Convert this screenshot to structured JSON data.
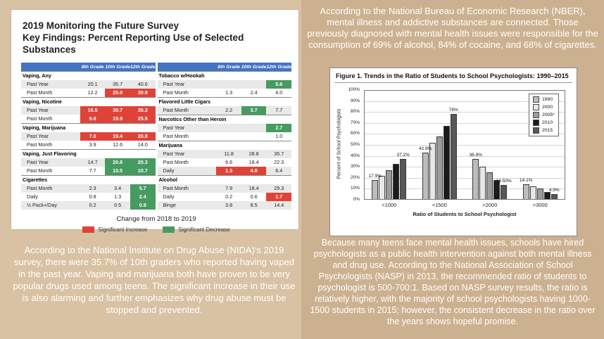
{
  "colors": {
    "background": "#d9c2a3",
    "background_right": "#ccb190",
    "table_header_blue": "#4472c4",
    "significant_increase_red": "#df4338",
    "significant_decrease_green": "#469b60",
    "paragraph_text": "#ffffff"
  },
  "survey": {
    "title_line1": "2019 Monitoring the Future Survey",
    "title_line2": "Key Findings: Percent Reporting Use of Selected Substances",
    "grade_headers": [
      "8th Grade",
      "10th Grade",
      "12th Grade"
    ],
    "change_caption": "Change from 2018 to 2019",
    "legend": [
      {
        "label": "Significant Increase",
        "type": "inc"
      },
      {
        "label": "Significant Decrease",
        "type": "dec"
      }
    ],
    "table_left": [
      {
        "type": "section",
        "label": "Vaping, Any"
      },
      {
        "type": "data",
        "label": "Past Year",
        "values": [
          "20.1",
          "35.7",
          "40.6"
        ],
        "marks": [
          "",
          "",
          ""
        ]
      },
      {
        "type": "data",
        "label": "Past Month",
        "values": [
          "12.2",
          "25.0",
          "30.9"
        ],
        "marks": [
          "",
          "inc",
          "inc"
        ]
      },
      {
        "type": "section",
        "label": "Vaping, Nicotine"
      },
      {
        "type": "data",
        "label": "Past Year",
        "values": [
          "16.5",
          "30.7",
          "35.3"
        ],
        "marks": [
          "inc",
          "inc",
          "inc"
        ]
      },
      {
        "type": "data",
        "label": "Past Month",
        "values": [
          "9.6",
          "19.9",
          "25.5"
        ],
        "marks": [
          "inc",
          "inc",
          "inc"
        ]
      },
      {
        "type": "section",
        "label": "Vaping, Marijuana"
      },
      {
        "type": "data",
        "label": "Past Year",
        "values": [
          "7.0",
          "19.4",
          "20.8"
        ],
        "marks": [
          "inc",
          "inc",
          "inc"
        ]
      },
      {
        "type": "data",
        "label": "Past Month",
        "values": [
          "3.9",
          "12.6",
          "14.0"
        ],
        "marks": [
          "",
          "",
          ""
        ]
      },
      {
        "type": "section",
        "label": "Vaping, Just Flavoring"
      },
      {
        "type": "data",
        "label": "Past Year",
        "values": [
          "14.7",
          "20.8",
          "20.3"
        ],
        "marks": [
          "",
          "dec",
          "dec"
        ]
      },
      {
        "type": "data",
        "label": "Past Month",
        "values": [
          "7.7",
          "10.5",
          "10.7"
        ],
        "marks": [
          "",
          "dec",
          "dec"
        ]
      },
      {
        "type": "section",
        "label": "Cigarettes"
      },
      {
        "type": "data",
        "label": "Past Month",
        "values": [
          "2.3",
          "3.4",
          "5.7"
        ],
        "marks": [
          "",
          "",
          "dec"
        ]
      },
      {
        "type": "data",
        "label": "Daily",
        "values": [
          "0.8",
          "1.3",
          "2.4"
        ],
        "marks": [
          "",
          "",
          "dec"
        ]
      },
      {
        "type": "data",
        "label": "½ Pack+/Day",
        "values": [
          "0.2",
          "0.5",
          "0.9"
        ],
        "marks": [
          "",
          "",
          "dec"
        ]
      }
    ],
    "table_right": [
      {
        "type": "section",
        "label": "Tobacco w/Hookah"
      },
      {
        "type": "data",
        "label": "Past Year",
        "values": [
          "",
          "",
          "5.6"
        ],
        "marks": [
          "",
          "",
          "dec"
        ]
      },
      {
        "type": "data",
        "label": "Past Month",
        "values": [
          "1.3",
          "2.4",
          "4.0"
        ],
        "marks": [
          "",
          "",
          ""
        ]
      },
      {
        "type": "section",
        "label": "Flavored Little Cigars"
      },
      {
        "type": "data",
        "label": "Past Month",
        "values": [
          "2.2",
          "3.7",
          "7.7"
        ],
        "marks": [
          "",
          "dec",
          ""
        ]
      },
      {
        "type": "section",
        "label": "Narcotics Other than Heroin"
      },
      {
        "type": "data",
        "label": "Past Year",
        "values": [
          "",
          "",
          "2.7"
        ],
        "marks": [
          "",
          "",
          "dec"
        ]
      },
      {
        "type": "data",
        "label": "Past Month",
        "values": [
          "",
          "",
          "1.0"
        ],
        "marks": [
          "",
          "",
          ""
        ]
      },
      {
        "type": "section",
        "label": "Marijuana"
      },
      {
        "type": "data",
        "label": "Past Year",
        "values": [
          "11.8",
          "28.8",
          "35.7"
        ],
        "marks": [
          "",
          "",
          ""
        ]
      },
      {
        "type": "data",
        "label": "Past Month",
        "values": [
          "6.6",
          "18.4",
          "22.3"
        ],
        "marks": [
          "",
          "",
          ""
        ]
      },
      {
        "type": "data",
        "label": "Daily",
        "values": [
          "1.3",
          "4.8",
          "6.4"
        ],
        "marks": [
          "inc",
          "inc",
          ""
        ]
      },
      {
        "type": "section",
        "label": "Alcohol"
      },
      {
        "type": "data",
        "label": "Past Month",
        "values": [
          "7.9",
          "18.4",
          "29.3"
        ],
        "marks": [
          "",
          "",
          ""
        ]
      },
      {
        "type": "data",
        "label": "Daily",
        "values": [
          "0.2",
          "0.6",
          "1.7"
        ],
        "marks": [
          "",
          "",
          "inc"
        ]
      },
      {
        "type": "data",
        "label": "Binge",
        "values": [
          "3.8",
          "8.5",
          "14.4"
        ],
        "marks": [
          "",
          "",
          ""
        ]
      }
    ]
  },
  "paragraphs": {
    "nber": "According to the National Bureau of Economic Research (NBER), mental illness and addictive substances are connected. Those previously diagnosed with mental health issues were responsible for the consumption of 69% of alcohol, 84% of cocaine, and 68% of cigarettes.",
    "nida": "According to the National Institute on Drug Abuse (NIDA)'s 2019 survey, there were 35.7% of 10th graders who reported having vaped in the past year. Vaping and marijuana both have proven to be very popular drugs used among teens. The significant increase in their use is also alarming and further emphasizes why drug abuse must be stopped and prevented.",
    "nasp": "Because many teens face mental health issues, schools have hired psychologists as a public health intervention against both mental illness and drug use. According to the National Association of School Psychologists (NASP) in 2013, the recommended ratio of students to psychologist is 500-700:1. Based on NASP survey results, the ratio is relatively higher, with the majority of school psychologists having 1000-1500 students in 2015; however, the consistent decrease in the ratio over the years shows hopeful promise."
  },
  "chart_data": {
    "type": "bar",
    "title": "Figure 1. Trends in the Ratio of Students to School Psychologists: 1990–2015",
    "categories": [
      "<1000",
      "<1500",
      ">2000",
      ">3000"
    ],
    "series": [
      {
        "name": "1990",
        "values": [
          17.9,
          42.9,
          36.9,
          14.1
        ]
      },
      {
        "name": "2000",
        "values": [
          22.0,
          52.0,
          30.0,
          12.0
        ]
      },
      {
        "name": "2005*",
        "values": [
          27.0,
          58.0,
          25.0,
          10.0
        ]
      },
      {
        "name": "2010",
        "values": [
          33.0,
          67.0,
          18.0,
          7.0
        ]
      },
      {
        "name": "2015",
        "values": [
          37.2,
          78.0,
          13.5,
          4.9
        ]
      }
    ],
    "series_colors": [
      "#bdbdbd",
      "#e7e7e7",
      "#9c9c9c",
      "#1b1b1b",
      "#575757"
    ],
    "annotations": [
      {
        "category": "<1000",
        "series": "1990",
        "text": "17.9%"
      },
      {
        "category": "<1000",
        "series": "2015",
        "text": "37.2%"
      },
      {
        "category": "<1500",
        "series": "1990",
        "text": "42.9%"
      },
      {
        "category": "<1500",
        "series": "2015",
        "text": "78%"
      },
      {
        "category": ">2000",
        "series": "1990",
        "text": "36.9%"
      },
      {
        "category": ">2000",
        "series": "2015",
        "text": "13.50%"
      },
      {
        "category": ">3000",
        "series": "1990",
        "text": "14.1%"
      },
      {
        "category": ">3000",
        "series": "2015",
        "text": "4.9%"
      }
    ],
    "xlabel": "Ratio of Students to School Psychologist",
    "ylabel": "Percent of School Psychologists",
    "ylim": [
      0,
      100
    ],
    "ytick_step": 10,
    "ytick_suffix": "%",
    "grid": true,
    "legend_position": "top-right"
  }
}
